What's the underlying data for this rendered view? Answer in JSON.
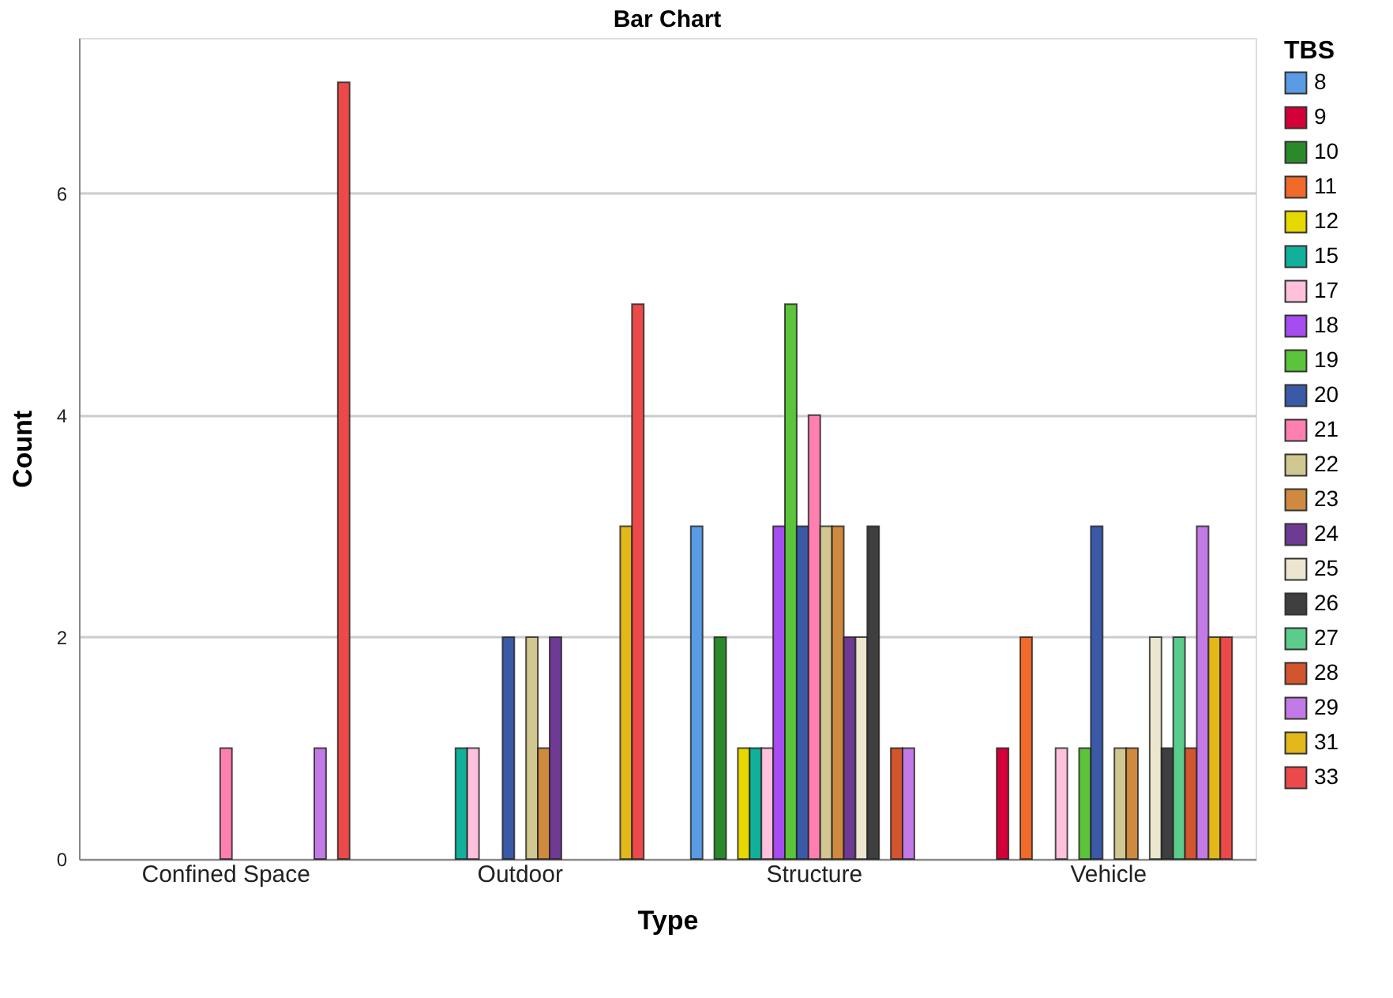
{
  "chart_data": {
    "type": "bar",
    "title": "Bar Chart",
    "xlabel": "Type",
    "ylabel": "Count",
    "legend_title": "TBS",
    "categories": [
      "Confined Space",
      "Outdoor",
      "Structure",
      "Vehicle"
    ],
    "series": [
      {
        "name": "8",
        "color": "#5a9be6",
        "values": [
          null,
          null,
          3,
          null
        ]
      },
      {
        "name": "9",
        "color": "#d4003a",
        "values": [
          null,
          null,
          null,
          1
        ]
      },
      {
        "name": "10",
        "color": "#2a8a2a",
        "values": [
          null,
          null,
          2,
          null
        ]
      },
      {
        "name": "11",
        "color": "#f26a2a",
        "values": [
          null,
          null,
          null,
          2
        ]
      },
      {
        "name": "12",
        "color": "#e6d800",
        "values": [
          null,
          null,
          1,
          null
        ]
      },
      {
        "name": "15",
        "color": "#10b09a",
        "values": [
          null,
          1,
          1,
          null
        ]
      },
      {
        "name": "17",
        "color": "#ffc0dc",
        "values": [
          null,
          1,
          1,
          1
        ]
      },
      {
        "name": "18",
        "color": "#a64cf0",
        "values": [
          null,
          null,
          3,
          null
        ]
      },
      {
        "name": "19",
        "color": "#5cc43a",
        "values": [
          null,
          null,
          5,
          1
        ]
      },
      {
        "name": "20",
        "color": "#3a5aa8",
        "values": [
          null,
          2,
          3,
          3
        ]
      },
      {
        "name": "21",
        "color": "#ff80b0",
        "values": [
          1,
          null,
          4,
          null
        ]
      },
      {
        "name": "22",
        "color": "#d0c890",
        "values": [
          null,
          2,
          3,
          1
        ]
      },
      {
        "name": "23",
        "color": "#d08a40",
        "values": [
          null,
          1,
          3,
          1
        ]
      },
      {
        "name": "24",
        "color": "#6e3a94",
        "values": [
          null,
          2,
          2,
          null
        ]
      },
      {
        "name": "25",
        "color": "#ece6d0",
        "values": [
          null,
          null,
          2,
          2
        ]
      },
      {
        "name": "26",
        "color": "#3f3f3f",
        "values": [
          null,
          null,
          3,
          1
        ]
      },
      {
        "name": "27",
        "color": "#5ccc8c",
        "values": [
          null,
          null,
          null,
          2
        ]
      },
      {
        "name": "28",
        "color": "#d2552e",
        "values": [
          null,
          null,
          1,
          1
        ]
      },
      {
        "name": "29",
        "color": "#c47ae6",
        "values": [
          1,
          null,
          1,
          3
        ]
      },
      {
        "name": "31",
        "color": "#e2b81a",
        "values": [
          null,
          3,
          null,
          2
        ]
      },
      {
        "name": "33",
        "color": "#ec4a4a",
        "values": [
          7,
          5,
          null,
          2
        ]
      }
    ],
    "ylim": [
      0,
      7.4
    ],
    "yticks": [
      0,
      2,
      4,
      6
    ],
    "grid": "y",
    "legend": "top right"
  }
}
